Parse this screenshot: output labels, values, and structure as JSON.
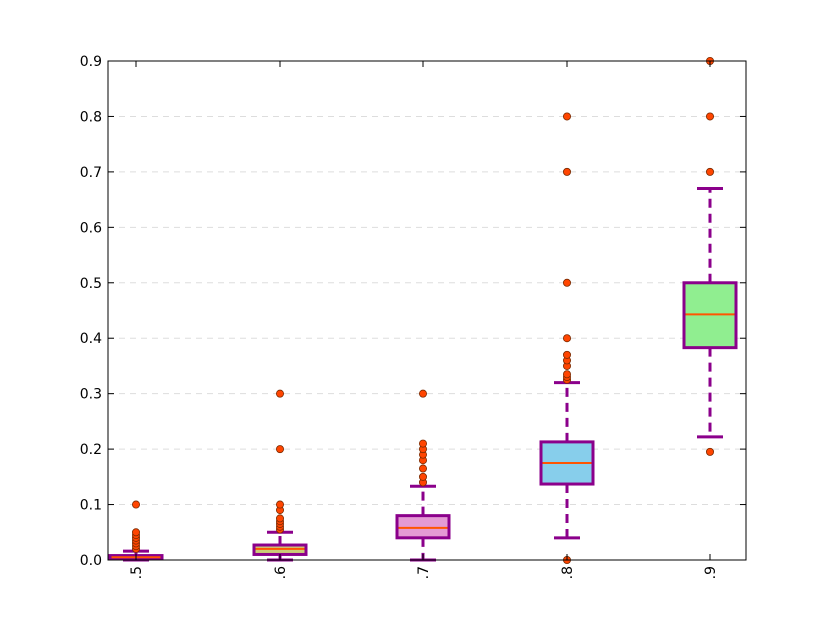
{
  "chart_data": {
    "type": "box",
    "title": "",
    "xlabel": "",
    "ylabel": "",
    "ylim": [
      0,
      0.9
    ],
    "yticks": [
      "0.0",
      "0.1",
      "0.2",
      "0.3",
      "0.4",
      "0.5",
      "0.6",
      "0.7",
      "0.8",
      "0.9"
    ],
    "grid": "horizontal dashed",
    "categories": [
      ".5",
      ".6",
      ".7",
      ".8",
      ".9"
    ],
    "boxes": [
      {
        "label": ".5",
        "whisker_low": 0.0,
        "q1": 0.002,
        "median": 0.005,
        "q3": 0.008,
        "whisker_high": 0.016,
        "fliers": [
          0.02,
          0.025,
          0.03,
          0.035,
          0.04,
          0.045,
          0.05,
          0.1
        ],
        "color": "#d8a0f0"
      },
      {
        "label": ".6",
        "whisker_low": 0.0,
        "q1": 0.01,
        "median": 0.02,
        "q3": 0.027,
        "whisker_high": 0.05,
        "fliers": [
          0.055,
          0.06,
          0.065,
          0.07,
          0.075,
          0.09,
          0.1,
          0.2,
          0.3
        ],
        "color": "#cccc77"
      },
      {
        "label": ".7",
        "whisker_low": 0.0,
        "q1": 0.04,
        "median": 0.058,
        "q3": 0.08,
        "whisker_high": 0.133,
        "fliers": [
          0.14,
          0.15,
          0.165,
          0.18,
          0.19,
          0.2,
          0.21,
          0.3
        ],
        "color": "#e49ad4"
      },
      {
        "label": ".8",
        "whisker_low": 0.04,
        "q1": 0.137,
        "median": 0.175,
        "q3": 0.213,
        "whisker_high": 0.32,
        "fliers": [
          0.0,
          0.325,
          0.33,
          0.335,
          0.35,
          0.36,
          0.37,
          0.4,
          0.5,
          0.7,
          0.8
        ],
        "color": "#87ceeb"
      },
      {
        "label": ".9",
        "whisker_low": 0.222,
        "q1": 0.383,
        "median": 0.443,
        "q3": 0.5,
        "whisker_high": 0.67,
        "fliers": [
          0.195,
          0.7,
          0.8,
          0.9
        ],
        "color": "#90ee90"
      }
    ],
    "colors": {
      "box_edge": "#8b008b",
      "whisker": "#8b008b",
      "median": "#ff5500",
      "flier_fill": "#ff4500",
      "grid": "#dddddd"
    }
  }
}
